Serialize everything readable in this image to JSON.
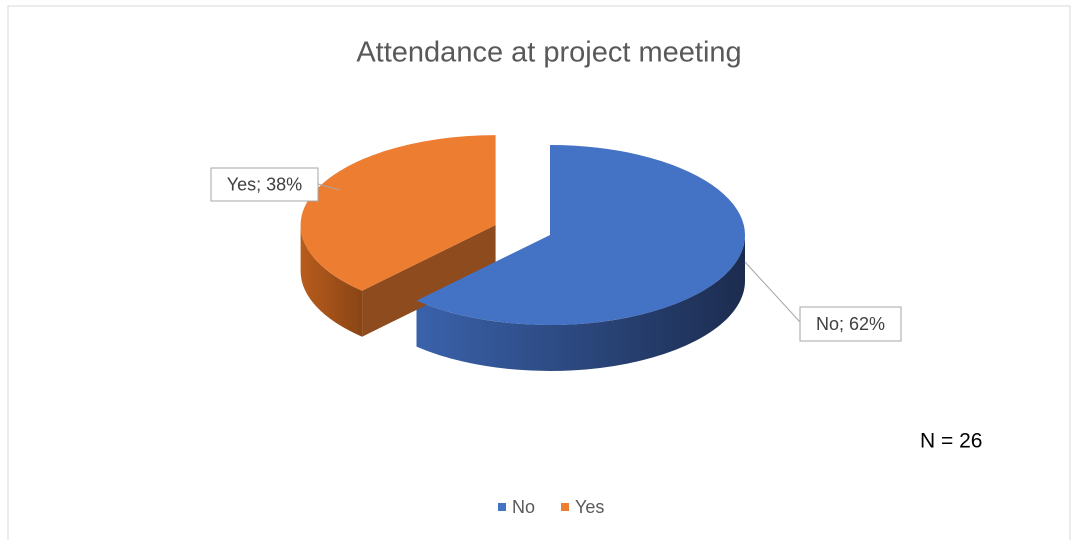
{
  "chart_data": {
    "type": "pie",
    "title": "Attendance at project meeting",
    "categories": [
      "No",
      "Yes"
    ],
    "values": [
      62,
      38
    ],
    "value_labels": [
      "No; 62%",
      "Yes; 38%"
    ],
    "colors": [
      "#4472c4",
      "#ed7d31"
    ],
    "annotation": "N = 26",
    "legend": "bottom"
  }
}
